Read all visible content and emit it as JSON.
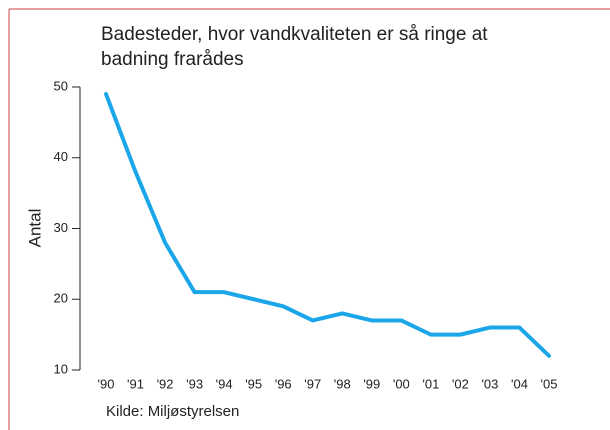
{
  "chart_data": {
    "type": "line",
    "title": "Badesteder, hvor vandkvaliteten er så ringe at badning frarådes",
    "y_label": "Antal",
    "source": "Kilde: Miljøstyrelsen",
    "categories": [
      "'90",
      "'91",
      "'92",
      "'93",
      "'94",
      "'95",
      "'96",
      "'97",
      "'98",
      "'99",
      "'00",
      "'01",
      "'02",
      "'03",
      "'04",
      "'05"
    ],
    "values": [
      49,
      38,
      28,
      21,
      21,
      20,
      19,
      17,
      18,
      17,
      17,
      15,
      15,
      16,
      16,
      12
    ],
    "color": "#1aa6e8",
    "ylim": [
      10,
      50
    ],
    "yticks": [
      10,
      20,
      30,
      40,
      50
    ]
  }
}
